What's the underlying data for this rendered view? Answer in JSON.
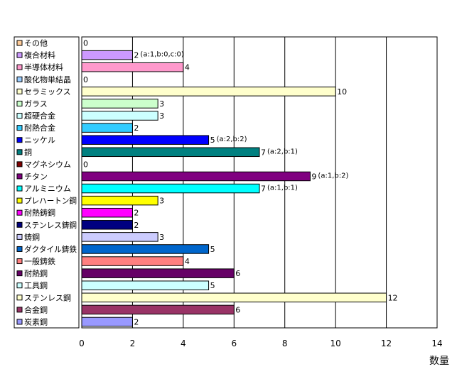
{
  "chart_data": {
    "type": "bar",
    "orientation": "horizontal",
    "xlabel": "数量",
    "xlim": [
      0,
      14
    ],
    "xticks": [
      0,
      2,
      4,
      6,
      8,
      10,
      12,
      14
    ],
    "grid": true,
    "legend_position": "left",
    "categories": [
      "その他",
      "複合材料",
      "半導体材料",
      "酸化物単結晶",
      "セラミックス",
      "ガラス",
      "超硬合金",
      "耐熱合金",
      "ニッケル",
      "銅",
      "マグネシウム",
      "チタン",
      "アルミニウム",
      "プレハートン鋼",
      "耐熱鋳鋼",
      "ステンレス鋳鋼",
      "鋳鋼",
      "ダクタイル鋳鉄",
      "一般鋳鉄",
      "耐熱鋼",
      "工具鋼",
      "ステンレス鋼",
      "合金鋼",
      "炭素鋼"
    ],
    "values": [
      0,
      2,
      4,
      0,
      10,
      3,
      3,
      2,
      5,
      7,
      0,
      9,
      7,
      3,
      2,
      2,
      3,
      5,
      4,
      6,
      5,
      12,
      6,
      2
    ],
    "colors": [
      "#ffcc99",
      "#cc99ff",
      "#ff99cc",
      "#99ccff",
      "#ffffcc",
      "#ccffcc",
      "#ccffff",
      "#33ccff",
      "#0000ff",
      "#008080",
      "#800000",
      "#800080",
      "#00ffff",
      "#ffff00",
      "#ff00ff",
      "#000080",
      "#ccccff",
      "#0066cc",
      "#ff8080",
      "#660066",
      "#ccffff",
      "#ffffcc",
      "#993366",
      "#9999ff"
    ],
    "annotations": [
      "",
      "(a:1,b:0,c:0)",
      "",
      "",
      "",
      "",
      "",
      "",
      "(a:2,b:2)",
      "(a:2,b:1)",
      "",
      "(a:1,b:2)",
      "(a:1,b:1)",
      "",
      "",
      "",
      "",
      "",
      "",
      "",
      "",
      "",
      "",
      ""
    ]
  }
}
